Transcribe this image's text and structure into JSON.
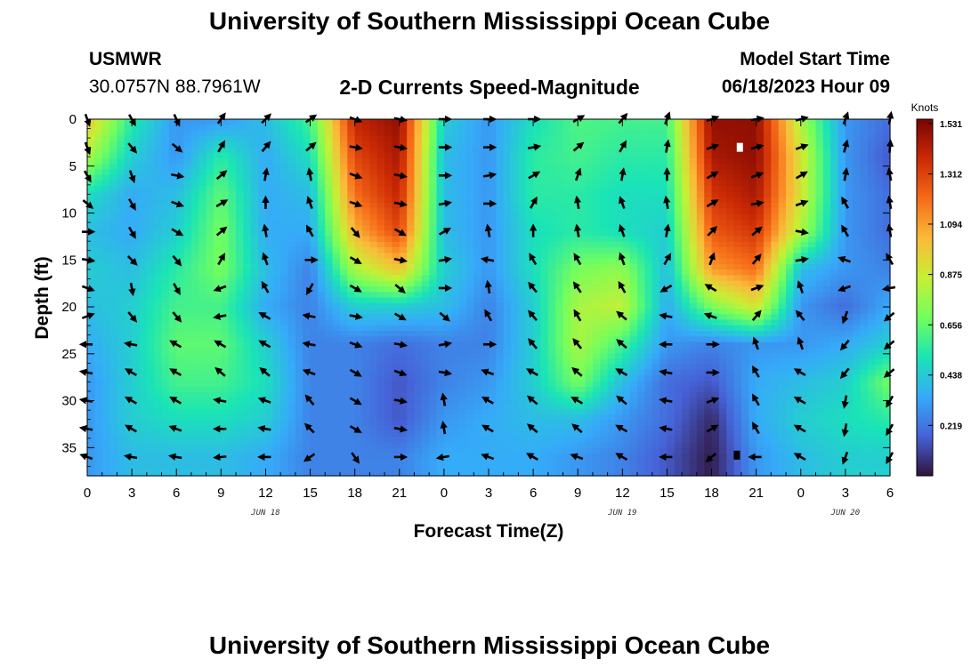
{
  "page": {
    "title": "University of Southern Mississippi Ocean Cube",
    "footer_title": "University of Southern Mississippi Ocean Cube",
    "station": "USMWR",
    "coords": "30.0757N  88.7961W",
    "subtitle": "2-D Currents Speed-Magnitude",
    "model_label": "Model Start Time",
    "model_time": "06/18/2023 Hour 09"
  },
  "chart_data": {
    "type": "heatmap",
    "title": "2-D Currents Speed-Magnitude",
    "xlabel": "Forecast Time(Z)",
    "ylabel": "Depth (ft)",
    "x_tick_labels": [
      "0",
      "3",
      "6",
      "9",
      "12",
      "15",
      "18",
      "21",
      "0",
      "3",
      "6",
      "9",
      "12",
      "15",
      "18",
      "21",
      "0",
      "3",
      "6"
    ],
    "x_range_hours": [
      0,
      54
    ],
    "date_labels": [
      {
        "label": "JUN 18",
        "hour": 12
      },
      {
        "label": "JUN 19",
        "hour": 36
      },
      {
        "label": "JUN 20",
        "hour": 51
      }
    ],
    "y_ticks": [
      0,
      5,
      10,
      15,
      20,
      25,
      30,
      35
    ],
    "ylim": [
      0,
      38
    ],
    "colorbar": {
      "title": "Knots",
      "ticks": [
        "1.531",
        "1.312",
        "1.094",
        "0.875",
        "0.656",
        "0.438",
        "0.219"
      ],
      "tick_values": [
        1.531,
        1.312,
        1.094,
        0.875,
        0.656,
        0.438,
        0.219
      ],
      "range": [
        0,
        1.55
      ],
      "colors": [
        "#30123b",
        "#4662d7",
        "#36aaf9",
        "#1ae4b6",
        "#72fe5e",
        "#c7ef34",
        "#faba39",
        "#f66b19",
        "#cb2a04",
        "#7a0403"
      ]
    },
    "speed_hours": [
      0,
      3,
      6,
      9,
      12,
      15,
      18,
      21,
      24,
      27,
      30,
      33,
      36,
      39,
      42,
      45,
      48,
      51,
      54
    ],
    "speed_depths": [
      0,
      4,
      8,
      12,
      16,
      20,
      24,
      28,
      32,
      36
    ],
    "speed_grid": [
      [
        1.0,
        0.55,
        0.3,
        0.3,
        0.4,
        0.6,
        1.4,
        1.5,
        0.45,
        0.3,
        0.5,
        0.62,
        0.6,
        0.6,
        1.5,
        1.5,
        0.8,
        0.3,
        0.2
      ],
      [
        0.8,
        0.45,
        0.3,
        0.55,
        0.35,
        0.5,
        1.3,
        1.45,
        0.4,
        0.3,
        0.55,
        0.6,
        0.55,
        0.55,
        1.45,
        1.5,
        0.9,
        0.3,
        0.15
      ],
      [
        0.5,
        0.35,
        0.4,
        0.65,
        0.35,
        0.4,
        1.2,
        1.4,
        0.4,
        0.3,
        0.55,
        0.55,
        0.5,
        0.5,
        1.35,
        1.45,
        0.9,
        0.3,
        0.2
      ],
      [
        0.4,
        0.35,
        0.45,
        0.7,
        0.35,
        0.35,
        1.05,
        1.3,
        0.4,
        0.3,
        0.5,
        0.55,
        0.5,
        0.45,
        1.25,
        1.35,
        0.8,
        0.3,
        0.2
      ],
      [
        0.45,
        0.4,
        0.55,
        0.7,
        0.4,
        0.25,
        0.8,
        1.0,
        0.45,
        0.3,
        0.5,
        0.7,
        0.75,
        0.4,
        1.1,
        1.2,
        0.4,
        0.3,
        0.25
      ],
      [
        0.4,
        0.45,
        0.6,
        0.6,
        0.35,
        0.25,
        0.45,
        0.45,
        0.4,
        0.25,
        0.45,
        0.8,
        0.85,
        0.35,
        0.7,
        0.9,
        0.3,
        0.2,
        0.35
      ],
      [
        0.35,
        0.45,
        0.65,
        0.65,
        0.45,
        0.25,
        0.25,
        0.2,
        0.25,
        0.25,
        0.45,
        0.8,
        0.6,
        0.3,
        0.25,
        0.3,
        0.3,
        0.35,
        0.45
      ],
      [
        0.3,
        0.45,
        0.6,
        0.6,
        0.5,
        0.25,
        0.25,
        0.15,
        0.25,
        0.3,
        0.45,
        0.7,
        0.4,
        0.2,
        0.15,
        0.35,
        0.4,
        0.45,
        0.7
      ],
      [
        0.3,
        0.45,
        0.5,
        0.5,
        0.45,
        0.25,
        0.25,
        0.15,
        0.3,
        0.35,
        0.4,
        0.4,
        0.3,
        0.2,
        0.05,
        0.35,
        0.45,
        0.5,
        0.55
      ],
      [
        0.3,
        0.4,
        0.4,
        0.4,
        0.35,
        0.25,
        0.25,
        0.25,
        0.35,
        0.35,
        0.35,
        0.3,
        0.25,
        0.15,
        0.02,
        0.3,
        0.4,
        0.45,
        0.45
      ]
    ],
    "arrow_hours": [
      0,
      3,
      6,
      9,
      12,
      15,
      18,
      21,
      24,
      27,
      30,
      33,
      36,
      39,
      42,
      45,
      48,
      51,
      54
    ],
    "arrow_depths": [
      0,
      3,
      6,
      9,
      12,
      15,
      18,
      21,
      24,
      27,
      30,
      33,
      36
    ],
    "arrow_dir_deg": [
      [
        160,
        150,
        155,
        35,
        45,
        55,
        110,
        100,
        90,
        90,
        90,
        60,
        40,
        20,
        70,
        80,
        75,
        20,
        10
      ],
      [
        160,
        140,
        130,
        30,
        40,
        50,
        100,
        100,
        90,
        90,
        80,
        50,
        30,
        10,
        70,
        75,
        70,
        15,
        5
      ],
      [
        150,
        160,
        100,
        50,
        10,
        350,
        110,
        100,
        90,
        80,
        60,
        20,
        10,
        0,
        60,
        70,
        60,
        10,
        350
      ],
      [
        130,
        150,
        110,
        60,
        0,
        340,
        110,
        100,
        80,
        90,
        30,
        350,
        340,
        350,
        60,
        80,
        70,
        330,
        350
      ],
      [
        90,
        150,
        120,
        50,
        350,
        330,
        140,
        120,
        60,
        350,
        0,
        350,
        340,
        10,
        45,
        50,
        100,
        330,
        350
      ],
      [
        100,
        135,
        140,
        30,
        340,
        90,
        120,
        100,
        80,
        280,
        330,
        330,
        340,
        30,
        20,
        40,
        80,
        290,
        330
      ],
      [
        110,
        170,
        150,
        250,
        330,
        210,
        120,
        130,
        90,
        350,
        320,
        325,
        330,
        240,
        300,
        70,
        340,
        250,
        260
      ],
      [
        70,
        140,
        140,
        260,
        300,
        280,
        100,
        120,
        130,
        330,
        320,
        330,
        310,
        280,
        290,
        40,
        320,
        200,
        230
      ],
      [
        270,
        280,
        300,
        300,
        300,
        280,
        110,
        100,
        80,
        90,
        320,
        320,
        310,
        270,
        90,
        340,
        340,
        220,
        230
      ],
      [
        280,
        300,
        300,
        310,
        310,
        290,
        120,
        110,
        100,
        290,
        300,
        310,
        300,
        280,
        90,
        330,
        300,
        220,
        230
      ],
      [
        280,
        300,
        300,
        280,
        290,
        320,
        120,
        100,
        350,
        300,
        310,
        300,
        310,
        280,
        70,
        330,
        300,
        190,
        210
      ],
      [
        280,
        300,
        290,
        270,
        280,
        315,
        120,
        100,
        350,
        300,
        310,
        310,
        300,
        280,
        60,
        330,
        300,
        190,
        210
      ],
      [
        290,
        280,
        280,
        265,
        270,
        235,
        145,
        90,
        260,
        290,
        300,
        290,
        300,
        270,
        230,
        270,
        300,
        200,
        210
      ]
    ],
    "markers": [
      {
        "hour": 43.9,
        "depth": 3.0,
        "color": "#ffffff"
      },
      {
        "hour": 43.7,
        "depth": 35.8,
        "color": "#000000"
      }
    ]
  }
}
